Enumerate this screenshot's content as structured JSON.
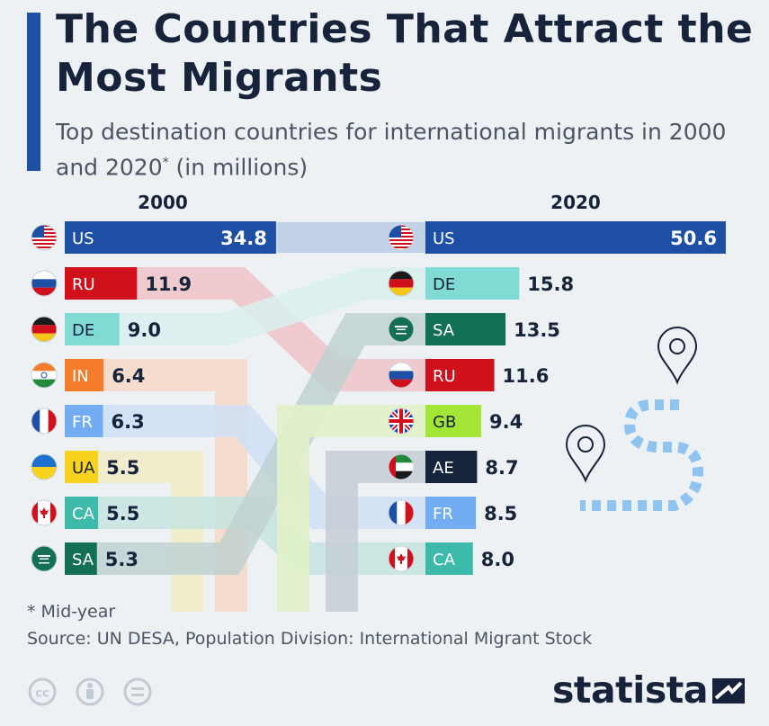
{
  "header": {
    "title": "The Countries That Attract the Most Migrants",
    "subtitle_main": "Top destination countries for international migrants in 2000 and 2020",
    "subtitle_mark": "*",
    "subtitle_tail": " (in millions)"
  },
  "footer": {
    "note": "* Mid-year",
    "source": "Source: UN DESA, Population Division: International Migrant Stock",
    "logo": "statista"
  },
  "chart_data": {
    "type": "bar",
    "title": "The Countries That Attract the Most Migrants",
    "units": "millions",
    "series": [
      {
        "name": "2000",
        "categories": [
          "US",
          "RU",
          "DE",
          "IN",
          "FR",
          "UA",
          "CA",
          "SA"
        ],
        "values": [
          "34.8",
          "11.9",
          "9.0",
          "6.4",
          "6.3",
          "5.5",
          "5.5",
          "5.3"
        ]
      },
      {
        "name": "2020",
        "categories": [
          "US",
          "DE",
          "SA",
          "RU",
          "GB",
          "AE",
          "FR",
          "CA"
        ],
        "values": [
          "50.6",
          "15.8",
          "13.5",
          "11.6",
          "9.4",
          "8.7",
          "8.5",
          "8.0"
        ]
      }
    ],
    "colors": {
      "US": "#1d4fa4",
      "RU": "#d0101b",
      "DE": "#7fdbd4",
      "IN": "#f57c2a",
      "FR": "#72adf4",
      "UA": "#f7d31e",
      "CA": "#3dbaa9",
      "SA": "#147055",
      "GB": "#a3e635",
      "AE": "#16233a"
    },
    "link_colors": {
      "US": "#b9cbe3",
      "RU": "#efc4c8",
      "DE": "#d8f0ef",
      "IN": "#f6d8c6",
      "FR": "#cfdff4",
      "UA": "#f0ecc6",
      "CA": "#c6e4df",
      "SA": "#bfd1d0"
    }
  }
}
